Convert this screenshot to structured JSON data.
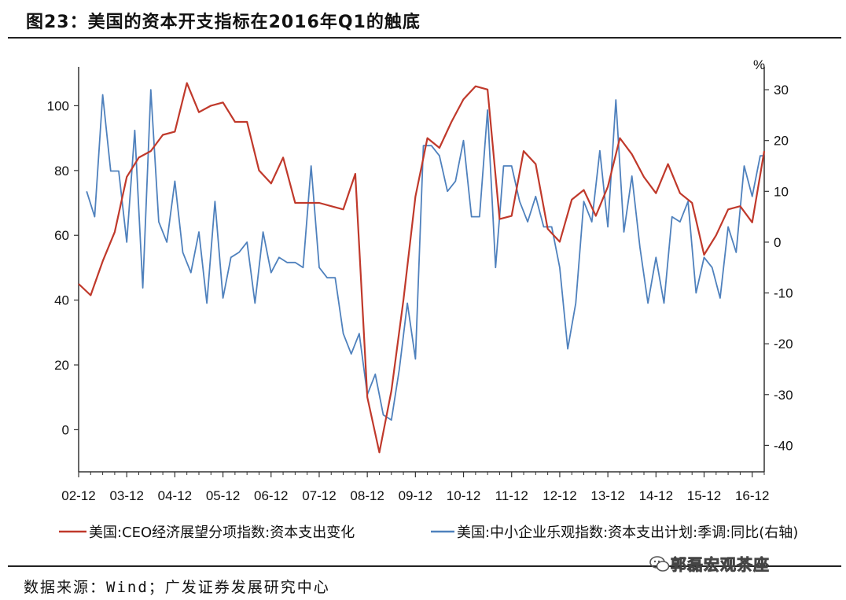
{
  "title": "图23：美国的资本开支指标在2016年Q1的触底",
  "source": "数据来源：Wind；广发证券发展研究中心",
  "watermark": "郭磊宏观茶座",
  "chart_data": {
    "type": "line",
    "x_tick_labels": [
      "02-12",
      "03-12",
      "04-12",
      "05-12",
      "06-12",
      "07-12",
      "08-12",
      "09-12",
      "10-12",
      "11-12",
      "12-12",
      "13-12",
      "14-12",
      "15-12",
      "16-12"
    ],
    "x_range": [
      2002.917,
      2017.167
    ],
    "left_axis": {
      "ylim": [
        -13,
        112
      ],
      "ticks": [
        0,
        20,
        40,
        60,
        80,
        100
      ]
    },
    "right_axis": {
      "unit_label": "%",
      "ylim": [
        -45.2,
        34.5
      ],
      "ticks": [
        -40,
        -30,
        -20,
        -10,
        0,
        10,
        20,
        30
      ]
    },
    "series": [
      {
        "name": "美国:CEO经济展望分项指数:资本支出变化",
        "axis": "left",
        "color": "#c0392b",
        "x": [
          2002.917,
          2003.167,
          2003.417,
          2003.667,
          2003.917,
          2004.167,
          2004.417,
          2004.667,
          2004.917,
          2005.167,
          2005.417,
          2005.667,
          2005.917,
          2006.167,
          2006.417,
          2006.667,
          2006.917,
          2007.167,
          2007.417,
          2007.667,
          2007.917,
          2008.167,
          2008.417,
          2008.667,
          2008.917,
          2009.167,
          2009.417,
          2009.667,
          2009.917,
          2010.167,
          2010.417,
          2010.667,
          2010.917,
          2011.167,
          2011.417,
          2011.667,
          2011.917,
          2012.167,
          2012.417,
          2012.667,
          2012.917,
          2013.167,
          2013.417,
          2013.667,
          2013.917,
          2014.167,
          2014.417,
          2014.667,
          2014.917,
          2015.167,
          2015.417,
          2015.667,
          2015.917,
          2016.167,
          2016.417,
          2016.667,
          2016.917,
          2017.167
        ],
        "values": [
          45,
          41.5,
          52,
          61,
          78,
          84,
          86,
          91,
          92,
          107,
          98,
          100,
          101,
          95,
          95,
          80,
          76,
          84,
          70,
          70,
          70,
          69,
          68,
          79,
          10,
          -7,
          12,
          40,
          72,
          90,
          87,
          95,
          102,
          106,
          105,
          65,
          66,
          86,
          82,
          62,
          58,
          71,
          74,
          66,
          75,
          90,
          85,
          78,
          73,
          82,
          73,
          70,
          54,
          60,
          68,
          69,
          64,
          86
        ]
      },
      {
        "name": "美国:中小企业乐观指数:资本支出计划:季调:同比(右轴)",
        "axis": "right",
        "color": "#4f81bd",
        "x": [
          2003.083,
          2003.25,
          2003.417,
          2003.583,
          2003.75,
          2003.917,
          2004.083,
          2004.25,
          2004.417,
          2004.583,
          2004.75,
          2004.917,
          2005.083,
          2005.25,
          2005.417,
          2005.583,
          2005.75,
          2005.917,
          2006.083,
          2006.25,
          2006.417,
          2006.583,
          2006.75,
          2006.917,
          2007.083,
          2007.25,
          2007.417,
          2007.583,
          2007.75,
          2007.917,
          2008.083,
          2008.25,
          2008.417,
          2008.583,
          2008.75,
          2008.917,
          2009.083,
          2009.25,
          2009.417,
          2009.583,
          2009.75,
          2009.917,
          2010.083,
          2010.25,
          2010.417,
          2010.583,
          2010.75,
          2010.917,
          2011.083,
          2011.25,
          2011.417,
          2011.583,
          2011.75,
          2011.917,
          2012.083,
          2012.25,
          2012.417,
          2012.583,
          2012.75,
          2012.917,
          2013.083,
          2013.25,
          2013.417,
          2013.583,
          2013.75,
          2013.917,
          2014.083,
          2014.25,
          2014.417,
          2014.583,
          2014.75,
          2014.917,
          2015.083,
          2015.25,
          2015.417,
          2015.583,
          2015.75,
          2015.917,
          2016.083,
          2016.25,
          2016.417,
          2016.583,
          2016.75,
          2016.917,
          2017.083,
          2017.167
        ],
        "values": [
          10,
          5,
          29,
          14,
          14,
          0,
          22,
          -9,
          30,
          4,
          0,
          12,
          -2,
          -6,
          2,
          -12,
          8,
          -11,
          -3,
          -2,
          0,
          -12,
          2,
          -6,
          -3,
          -4,
          -4,
          -5,
          15,
          -5,
          -7,
          -7,
          -18,
          -22,
          -18,
          -30,
          -26,
          -34,
          -35,
          -25,
          -12,
          -23,
          19,
          19,
          17,
          10,
          12,
          20,
          5,
          5,
          26,
          -5,
          15,
          15,
          8,
          4,
          9,
          3,
          3,
          -5,
          -21,
          -12,
          8,
          4,
          18,
          3,
          28,
          2,
          13,
          -1,
          -12,
          -3,
          -12,
          5,
          4,
          8,
          -10,
          -3,
          -5,
          -11,
          3,
          -2,
          15,
          9,
          17,
          17
        ]
      }
    ]
  }
}
